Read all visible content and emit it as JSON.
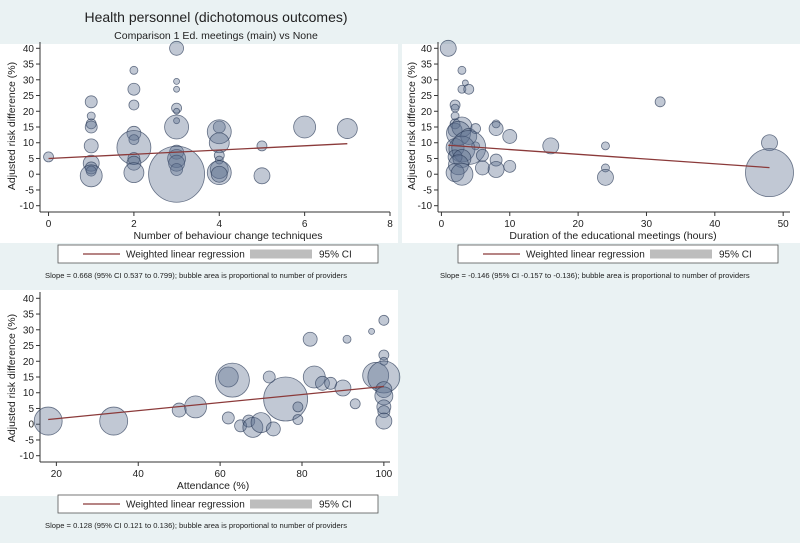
{
  "figure": {
    "title": "Health personnel (dichotomous outcomes)",
    "subtitle": "Comparison 1 Ed. meetings (main) vs None"
  },
  "colors": {
    "background": "#eaf2f3",
    "panel": "#ffffff",
    "bubble_fill": "#5c6f8f",
    "bubble_stroke": "#2e3d5a",
    "regression_line": "#8b3a3a",
    "ci_band": "#bdbdbd"
  },
  "chart_data": [
    {
      "type": "scatter",
      "subtype": "bubble",
      "xlabel": "Number of behaviour change techniques",
      "ylabel": "Adjusted risk difference (%)",
      "xlim": [
        -0.2,
        8
      ],
      "ylim": [
        -12,
        42
      ],
      "xticks": [
        0,
        2,
        4,
        6,
        8
      ],
      "yticks": [
        -10,
        -5,
        0,
        5,
        10,
        15,
        20,
        25,
        30,
        35,
        40
      ],
      "legend": [
        "Weighted linear regression",
        "95% CI"
      ],
      "slope_note": "Slope = 0.668 (95% CI 0.537 to 0.799); bubble area is proportional to number of providers",
      "regression": {
        "x": [
          0,
          7
        ],
        "y": [
          5,
          9.7
        ]
      },
      "points": [
        {
          "x": 0,
          "y": 5.5,
          "r": 5
        },
        {
          "x": 1,
          "y": 23,
          "r": 6
        },
        {
          "x": 1,
          "y": 18.5,
          "r": 4
        },
        {
          "x": 1,
          "y": 16,
          "r": 5
        },
        {
          "x": 1,
          "y": 15,
          "r": 6
        },
        {
          "x": 1,
          "y": 9,
          "r": 7
        },
        {
          "x": 1,
          "y": 3.5,
          "r": 8
        },
        {
          "x": 1,
          "y": 2,
          "r": 6
        },
        {
          "x": 1,
          "y": 1,
          "r": 5
        },
        {
          "x": 1,
          "y": -0.5,
          "r": 11
        },
        {
          "x": 2,
          "y": 33,
          "r": 4
        },
        {
          "x": 2,
          "y": 27,
          "r": 6
        },
        {
          "x": 2,
          "y": 22,
          "r": 5
        },
        {
          "x": 2,
          "y": 13,
          "r": 7
        },
        {
          "x": 2,
          "y": 11,
          "r": 5
        },
        {
          "x": 2,
          "y": 8.5,
          "r": 17
        },
        {
          "x": 2,
          "y": 5,
          "r": 6
        },
        {
          "x": 2,
          "y": 3.5,
          "r": 7
        },
        {
          "x": 2,
          "y": 0.5,
          "r": 10
        },
        {
          "x": 3,
          "y": 40,
          "r": 7
        },
        {
          "x": 3,
          "y": 29.5,
          "r": 3
        },
        {
          "x": 3,
          "y": 27,
          "r": 3
        },
        {
          "x": 3,
          "y": 21,
          "r": 5
        },
        {
          "x": 3,
          "y": 20,
          "r": 3
        },
        {
          "x": 3,
          "y": 17,
          "r": 3
        },
        {
          "x": 3,
          "y": 15,
          "r": 12
        },
        {
          "x": 3,
          "y": 7,
          "r": 7
        },
        {
          "x": 3,
          "y": 5,
          "r": 9
        },
        {
          "x": 3,
          "y": 3.5,
          "r": 8
        },
        {
          "x": 3,
          "y": 1.5,
          "r": 6
        },
        {
          "x": 3,
          "y": 0,
          "r": 28
        },
        {
          "x": 4,
          "y": 15,
          "r": 6
        },
        {
          "x": 4,
          "y": 13.5,
          "r": 12
        },
        {
          "x": 4,
          "y": 10,
          "r": 10
        },
        {
          "x": 4,
          "y": 6,
          "r": 5
        },
        {
          "x": 4,
          "y": 4.5,
          "r": 4
        },
        {
          "x": 4,
          "y": 1.5,
          "r": 9
        },
        {
          "x": 4,
          "y": 0.5,
          "r": 12
        },
        {
          "x": 4,
          "y": 0,
          "r": 8
        },
        {
          "x": 5,
          "y": 9,
          "r": 5
        },
        {
          "x": 5,
          "y": -0.5,
          "r": 8
        },
        {
          "x": 6,
          "y": 15,
          "r": 11
        },
        {
          "x": 7,
          "y": 14.5,
          "r": 10
        }
      ]
    },
    {
      "type": "scatter",
      "subtype": "bubble",
      "xlabel": "Duration of the educational meetings (hours)",
      "ylabel": "Adjusted risk difference (%)",
      "xlim": [
        -0.5,
        51
      ],
      "ylim": [
        -12,
        42
      ],
      "xticks": [
        0,
        10,
        20,
        30,
        40,
        50
      ],
      "yticks": [
        -10,
        -5,
        0,
        5,
        10,
        15,
        20,
        25,
        30,
        35,
        40
      ],
      "legend": [
        "Weighted linear regression",
        "95% CI"
      ],
      "slope_note": "Slope = -0.146 (95% CI -0.157 to -0.136); bubble area is proportional to number of providers",
      "regression": {
        "x": [
          1,
          48
        ],
        "y": [
          9.2,
          2.1
        ]
      },
      "points": [
        {
          "x": 1,
          "y": 40,
          "r": 8
        },
        {
          "x": 3,
          "y": 33,
          "r": 4
        },
        {
          "x": 3.5,
          "y": 29,
          "r": 3
        },
        {
          "x": 3,
          "y": 27,
          "r": 4
        },
        {
          "x": 4,
          "y": 27,
          "r": 5
        },
        {
          "x": 2,
          "y": 22,
          "r": 5
        },
        {
          "x": 2,
          "y": 21,
          "r": 4
        },
        {
          "x": 2,
          "y": 18.5,
          "r": 4
        },
        {
          "x": 2,
          "y": 16,
          "r": 5
        },
        {
          "x": 2,
          "y": 14,
          "r": 7
        },
        {
          "x": 3,
          "y": 15,
          "r": 10
        },
        {
          "x": 2.5,
          "y": 13,
          "r": 12
        },
        {
          "x": 4,
          "y": 12,
          "r": 8
        },
        {
          "x": 5,
          "y": 14.5,
          "r": 5
        },
        {
          "x": 5,
          "y": 9,
          "r": 4
        },
        {
          "x": 8,
          "y": 16,
          "r": 4
        },
        {
          "x": 8,
          "y": 14.5,
          "r": 7
        },
        {
          "x": 10,
          "y": 12,
          "r": 7
        },
        {
          "x": 2,
          "y": 8.5,
          "r": 9
        },
        {
          "x": 3,
          "y": 8,
          "r": 13
        },
        {
          "x": 4,
          "y": 8.5,
          "r": 17
        },
        {
          "x": 2,
          "y": 5.5,
          "r": 7
        },
        {
          "x": 3,
          "y": 5,
          "r": 9
        },
        {
          "x": 2.5,
          "y": 3,
          "r": 10
        },
        {
          "x": 6,
          "y": 6,
          "r": 6
        },
        {
          "x": 8,
          "y": 4.5,
          "r": 6
        },
        {
          "x": 6,
          "y": 2,
          "r": 7
        },
        {
          "x": 8,
          "y": 1.5,
          "r": 8
        },
        {
          "x": 10,
          "y": 2.5,
          "r": 6
        },
        {
          "x": 2,
          "y": 0.5,
          "r": 9
        },
        {
          "x": 3,
          "y": 0,
          "r": 11
        },
        {
          "x": 16,
          "y": 9,
          "r": 8
        },
        {
          "x": 24,
          "y": 9,
          "r": 4
        },
        {
          "x": 24,
          "y": 2,
          "r": 4
        },
        {
          "x": 24,
          "y": -1,
          "r": 8
        },
        {
          "x": 32,
          "y": 23,
          "r": 5
        },
        {
          "x": 48,
          "y": 10,
          "r": 8
        },
        {
          "x": 48,
          "y": 0.5,
          "r": 24
        }
      ]
    },
    {
      "type": "scatter",
      "subtype": "bubble",
      "xlabel": "Attendance (%)",
      "ylabel": "Adjusted risk difference (%)",
      "xlim": [
        16,
        101.5
      ],
      "ylim": [
        -12,
        42
      ],
      "xticks": [
        20,
        40,
        60,
        80,
        100
      ],
      "yticks": [
        -10,
        -5,
        0,
        5,
        10,
        15,
        20,
        25,
        30,
        35,
        40
      ],
      "legend": [
        "Weighted linear regression",
        "95% CI"
      ],
      "slope_note": "Slope = 0.128 (95% CI 0.121 to 0.136); bubble area is proportional to number of providers",
      "regression": {
        "x": [
          18,
          100
        ],
        "y": [
          1.5,
          12
        ]
      },
      "points": [
        {
          "x": 18,
          "y": 1,
          "r": 14
        },
        {
          "x": 34,
          "y": 1,
          "r": 14
        },
        {
          "x": 50,
          "y": 4.5,
          "r": 7
        },
        {
          "x": 54,
          "y": 5.5,
          "r": 11
        },
        {
          "x": 62,
          "y": 15,
          "r": 10
        },
        {
          "x": 63,
          "y": 14,
          "r": 17
        },
        {
          "x": 62,
          "y": 2,
          "r": 6
        },
        {
          "x": 65,
          "y": -0.5,
          "r": 6
        },
        {
          "x": 67,
          "y": 1,
          "r": 6
        },
        {
          "x": 68,
          "y": -1,
          "r": 10
        },
        {
          "x": 70,
          "y": 0.5,
          "r": 10
        },
        {
          "x": 72,
          "y": 15,
          "r": 6
        },
        {
          "x": 73,
          "y": -1.5,
          "r": 7
        },
        {
          "x": 76,
          "y": 8,
          "r": 22
        },
        {
          "x": 79,
          "y": 5.5,
          "r": 5
        },
        {
          "x": 79,
          "y": 1.5,
          "r": 5
        },
        {
          "x": 82,
          "y": 27,
          "r": 7
        },
        {
          "x": 83,
          "y": 15,
          "r": 11
        },
        {
          "x": 85,
          "y": 13,
          "r": 7
        },
        {
          "x": 87,
          "y": 13,
          "r": 6
        },
        {
          "x": 90,
          "y": 11.5,
          "r": 8
        },
        {
          "x": 91,
          "y": 27,
          "r": 4
        },
        {
          "x": 93,
          "y": 6.5,
          "r": 5
        },
        {
          "x": 97,
          "y": 29.5,
          "r": 3
        },
        {
          "x": 98,
          "y": 15.5,
          "r": 13
        },
        {
          "x": 100,
          "y": 33,
          "r": 5
        },
        {
          "x": 100,
          "y": 22,
          "r": 5
        },
        {
          "x": 100,
          "y": 20,
          "r": 4
        },
        {
          "x": 100,
          "y": 15,
          "r": 16
        },
        {
          "x": 100,
          "y": 11,
          "r": 8
        },
        {
          "x": 100,
          "y": 9,
          "r": 9
        },
        {
          "x": 100,
          "y": 5.5,
          "r": 7
        },
        {
          "x": 100,
          "y": 4,
          "r": 6
        },
        {
          "x": 100,
          "y": 1,
          "r": 8
        }
      ]
    }
  ]
}
